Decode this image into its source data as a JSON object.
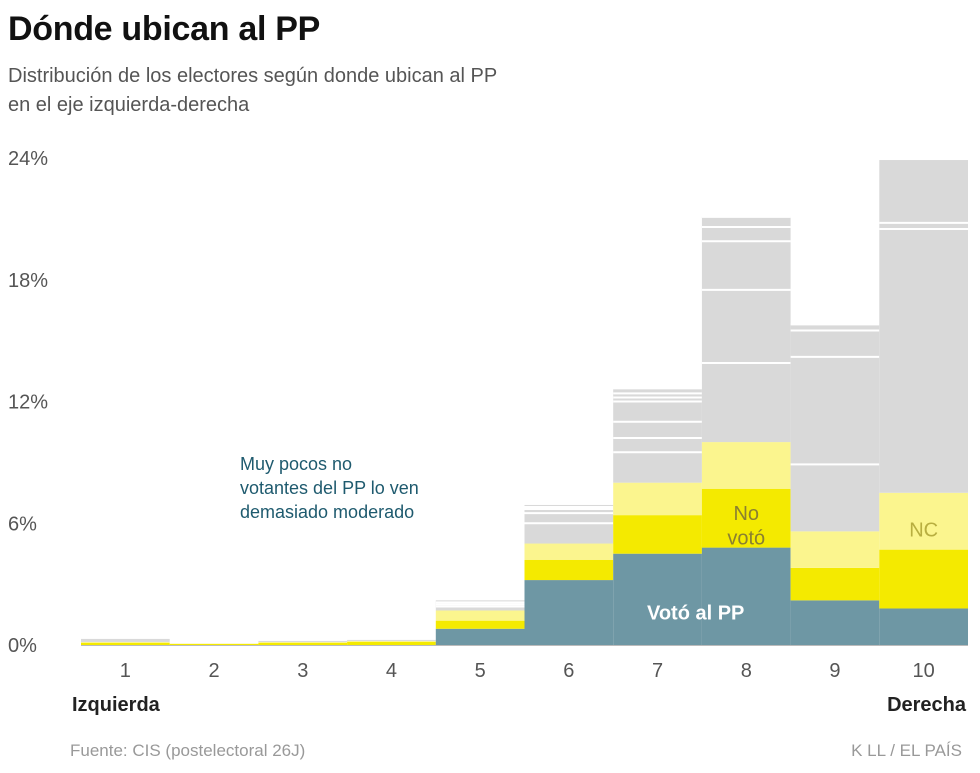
{
  "header": {
    "title": "Dónde ubican al PP",
    "subtitle_line1": "Distribución de los electores según donde ubican al PP",
    "subtitle_line2": "en el eje izquierda-derecha"
  },
  "footer": {
    "source": "Fuente: CIS (postelectoral 26J)",
    "credit": "K LL / EL PAÍS"
  },
  "chart_data": {
    "type": "bar",
    "stacked": true,
    "categories": [
      "1",
      "2",
      "3",
      "4",
      "5",
      "6",
      "7",
      "8",
      "9",
      "10"
    ],
    "x_end_labels": {
      "left": "Izquierda",
      "right": "Derecha"
    },
    "ylim": [
      0,
      24
    ],
    "yticks": [
      "0%",
      "6%",
      "12%",
      "18%",
      "24%"
    ],
    "ytick_values": [
      0,
      6,
      12,
      18,
      24
    ],
    "series": [
      {
        "name": "Votó al PP",
        "color": "#6e97a4",
        "values": [
          0,
          0,
          0,
          0,
          0.8,
          3.2,
          4.5,
          4.8,
          2.2,
          1.8
        ]
      },
      {
        "color": "#f4ea00",
        "values": [
          0.1,
          0.05,
          0.1,
          0.15,
          0.4,
          1.0,
          1.9,
          2.9,
          1.6,
          2.9
        ]
      },
      {
        "name": "No votó",
        "color": "#f4ea00",
        "values": [
          0,
          0,
          0,
          0,
          0,
          0,
          0,
          0,
          0,
          0
        ]
      },
      {
        "color": "#fbf58e",
        "values": [
          0.05,
          0.02,
          0.05,
          0.05,
          0.5,
          0.8,
          1.6,
          2.3,
          1.8,
          2.8
        ]
      },
      {
        "name": "NC",
        "color": "#fbf58e",
        "values": [
          0,
          0,
          0,
          0,
          0,
          0,
          0,
          0,
          0,
          0
        ]
      },
      {
        "color": "#d9d9d9",
        "values": [
          0.15,
          0.0,
          0.05,
          0.05,
          0.5,
          1.9,
          4.6,
          11.1,
          10.2,
          16.4
        ]
      }
    ],
    "dividers": [
      [],
      [],
      [],
      [],
      [
        1.9,
        2.0,
        2.1
      ],
      [
        6.0,
        6.5,
        6.7,
        6.8
      ],
      [
        9.5,
        10.2,
        11.0,
        12.0,
        12.2,
        12.4
      ],
      [
        13.9,
        17.5,
        19.9,
        20.6,
        21.1
      ],
      [
        8.9,
        14.2,
        15.5,
        15.8
      ],
      [
        20.5,
        20.8
      ]
    ],
    "segment_labels": [
      {
        "text": "Votó al PP",
        "category": "8",
        "y": 1.6,
        "color": "#ffffff",
        "bold": true
      },
      {
        "text": "No",
        "category": "8",
        "y": 6.5,
        "color": "#8a8030",
        "bold": false
      },
      {
        "text": "votó",
        "category": "8",
        "y": 5.3,
        "color": "#8a8030",
        "bold": false
      },
      {
        "text": "NC",
        "category": "10",
        "y": 5.7,
        "color": "#b8ae40",
        "bold": false
      }
    ],
    "annotation": [
      "Muy pocos no",
      "votantes del PP lo ven",
      "demasiado moderado"
    ]
  }
}
